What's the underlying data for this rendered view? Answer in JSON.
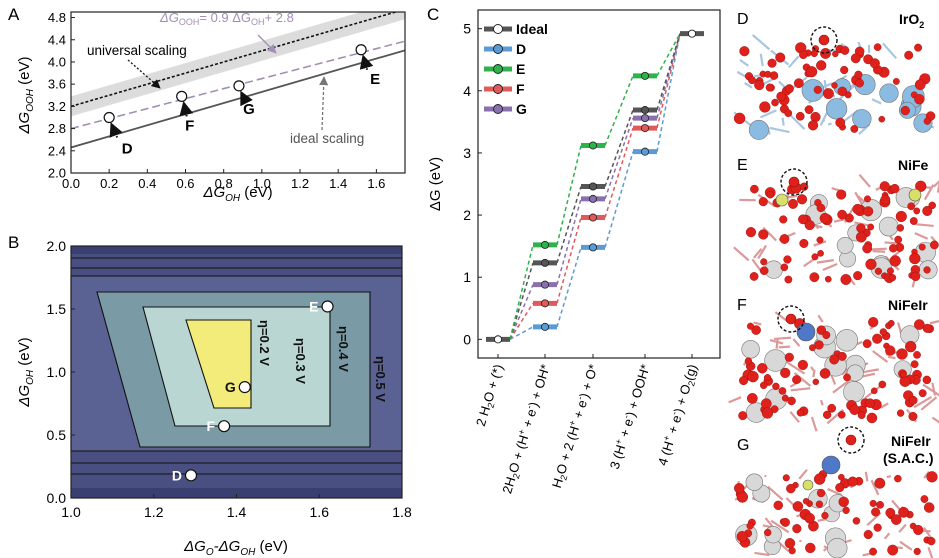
{
  "panels": {
    "a": {
      "label": "A"
    },
    "b": {
      "label": "B"
    },
    "c": {
      "label": "C"
    },
    "d": {
      "label": "D",
      "name": "IrO",
      "sub": "2"
    },
    "e": {
      "label": "E",
      "name": "NiFe"
    },
    "f": {
      "label": "F",
      "name": "NiFeIr"
    },
    "g": {
      "label": "G",
      "name": "NiFeIr",
      "name2": "(S.A.C.)"
    }
  },
  "chart_data": [
    {
      "id": "A",
      "type": "scatter",
      "xlabel": {
        "main": "ΔG",
        "sub": "OH",
        "unit": " (eV)"
      },
      "ylabel": {
        "main": "ΔG",
        "sub": "OOH",
        "unit": " (eV)"
      },
      "xlim": [
        0,
        1.75
      ],
      "ylim": [
        2.0,
        4.9
      ],
      "xticks": [
        "0.0",
        "0.2",
        "0.4",
        "0.6",
        "0.8",
        "1.0",
        "1.2",
        "1.4",
        "1.6"
      ],
      "yticks": [
        "2.0",
        "2.4",
        "2.8",
        "3.2",
        "3.6",
        "4.0",
        "4.4",
        "4.8"
      ],
      "lines": [
        {
          "name": "universal scaling",
          "slope": 1.0,
          "intercept": 3.2,
          "style": "dotted",
          "color": "#111111",
          "band": 0.18
        },
        {
          "name": "ΔG(OOH) = 0.9 ΔG(OH) + 2.8",
          "slope": 0.9,
          "intercept": 2.8,
          "style": "dashed",
          "color": "#a38fb5"
        },
        {
          "name": "ideal scaling",
          "slope": 1.0,
          "intercept": 2.46,
          "style": "solid",
          "color": "#555555"
        }
      ],
      "annotations": {
        "universal": "universal scaling",
        "ideal": "ideal scaling",
        "equation": {
          "lhs": "ΔG",
          "lhs_sub": "OOH",
          "mid": "= 0.9 ΔG",
          "mid_sub": "OH",
          "rhs": "+ 2.8"
        }
      },
      "points": [
        {
          "label": "D",
          "x": 0.2,
          "y": 3.0
        },
        {
          "label": "F",
          "x": 0.58,
          "y": 3.38
        },
        {
          "label": "G",
          "x": 0.88,
          "y": 3.57
        },
        {
          "label": "E",
          "x": 1.52,
          "y": 4.22
        }
      ]
    },
    {
      "id": "B",
      "type": "heatmap",
      "xlabel": {
        "main": "ΔG",
        "sub": "O",
        "mid": "-ΔG",
        "sub2": "OH",
        "unit": " (eV)"
      },
      "ylabel": {
        "main": "ΔG",
        "sub": "OH",
        "unit": " (eV)"
      },
      "xlim": [
        1.0,
        1.8
      ],
      "ylim": [
        0.0,
        2.0
      ],
      "xticks": [
        "1.0",
        "1.2",
        "1.4",
        "1.6",
        "1.8"
      ],
      "yticks": [
        "0.0",
        "0.5",
        "1.0",
        "1.5",
        "2.0"
      ],
      "contours": [
        "η=0.2 V",
        "η=0.3 V",
        "η=0.4 V",
        "η=0.5 V"
      ],
      "points": [
        {
          "label": "D",
          "x": 1.29,
          "y": 0.18
        },
        {
          "label": "F",
          "x": 1.37,
          "y": 0.57
        },
        {
          "label": "G",
          "x": 1.42,
          "y": 0.88
        },
        {
          "label": "E",
          "x": 1.62,
          "y": 1.52
        }
      ]
    },
    {
      "id": "C",
      "type": "line",
      "ylabel": "ΔG (eV)",
      "ylim": [
        -0.3,
        5.3
      ],
      "yticks": [
        "0",
        "1",
        "2",
        "3",
        "4",
        "5"
      ],
      "steps": [
        {
          "main": "2 H",
          "s1": "2",
          "rest": "O + (*)"
        },
        {
          "main": "2H",
          "s1": "2",
          "rest": "O + (H",
          "sup": "+",
          "rest2": " + e",
          "sup2": "-",
          "rest3": ") + OH*"
        },
        {
          "main": "H",
          "s1": "2",
          "rest": "O + 2 (H",
          "sup": "+",
          "rest2": " + e",
          "sup2": "-",
          "rest3": ") + O*"
        },
        {
          "main": "3 (H",
          "sup": "+",
          "rest2": " + e",
          "sup2": "-",
          "rest3": ") + OOH*"
        },
        {
          "main": "4 (H",
          "sup": "+",
          "rest2": " + e",
          "sup2": "-",
          "rest3": ") + O",
          "s1": "2",
          "tail": "(g)"
        }
      ],
      "series": [
        {
          "name": "Ideal",
          "color": "#555555",
          "values": [
            0,
            1.23,
            2.46,
            3.69,
            4.92
          ]
        },
        {
          "name": "D",
          "color": "#5b9bd5",
          "values": [
            0,
            0.2,
            1.48,
            3.02,
            4.92
          ]
        },
        {
          "name": "E",
          "color": "#2db34a",
          "values": [
            0,
            1.52,
            3.12,
            4.24,
            4.92
          ]
        },
        {
          "name": "F",
          "color": "#e05a5a",
          "values": [
            0,
            0.58,
            1.96,
            3.4,
            4.92
          ]
        },
        {
          "name": "G",
          "color": "#8a70ad",
          "values": [
            0,
            0.88,
            2.26,
            3.56,
            4.92
          ]
        }
      ]
    }
  ]
}
